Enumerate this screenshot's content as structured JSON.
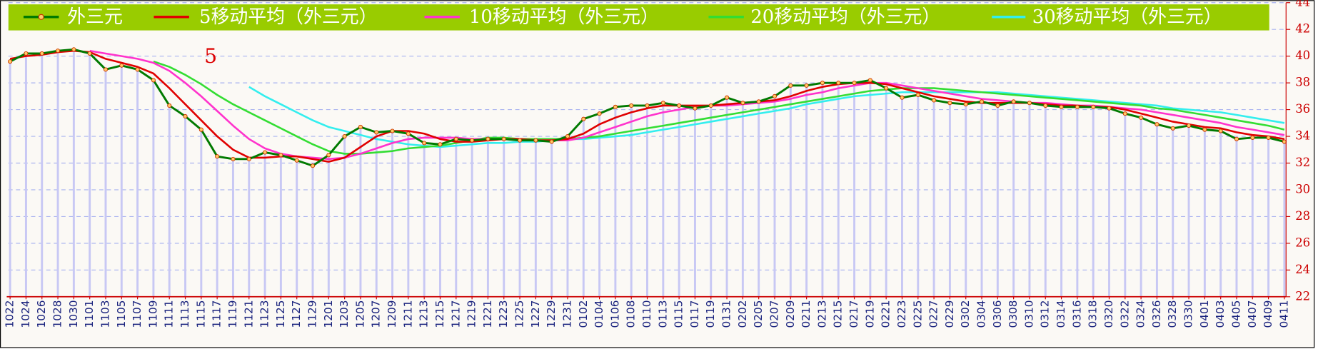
{
  "chart_data": {
    "type": "line",
    "annotations": [
      "5"
    ],
    "categories": [
      "1022",
      "1024",
      "1026",
      "1028",
      "1030",
      "1101",
      "1103",
      "1105",
      "1107",
      "1109",
      "1111",
      "1113",
      "1115",
      "1117",
      "1119",
      "1121",
      "1123",
      "1125",
      "1127",
      "1129",
      "1201",
      "1203",
      "1205",
      "1207",
      "1209",
      "1211",
      "1213",
      "1215",
      "1217",
      "1219",
      "1221",
      "1223",
      "1225",
      "1227",
      "1229",
      "1231",
      "0102",
      "0104",
      "0106",
      "0108",
      "0110",
      "0113",
      "0115",
      "0117",
      "0119",
      "0131",
      "0202",
      "0205",
      "0207",
      "0209",
      "0211",
      "0213",
      "0215",
      "0217",
      "0219",
      "0221",
      "0223",
      "0225",
      "0227",
      "0229",
      "0302",
      "0304",
      "0306",
      "0308",
      "0310",
      "0312",
      "0314",
      "0316",
      "0318",
      "0320",
      "0322",
      "0324",
      "0326",
      "0328",
      "0330",
      "0401",
      "0403",
      "0405",
      "0407",
      "0409",
      "0411"
    ],
    "series": [
      {
        "name": "外三元",
        "color": "#007a00",
        "values": [
          39.6,
          40.2,
          40.2,
          40.4,
          40.5,
          40.2,
          39.0,
          39.3,
          39.0,
          38.2,
          36.3,
          35.5,
          34.5,
          32.5,
          32.3,
          32.3,
          32.8,
          32.6,
          32.2,
          31.8,
          32.6,
          34.0,
          34.7,
          34.3,
          34.4,
          34.2,
          33.5,
          33.4,
          33.8,
          33.7,
          33.8,
          33.8,
          33.7,
          33.7,
          33.6,
          34.0,
          35.3,
          35.7,
          36.2,
          36.3,
          36.3,
          36.5,
          36.3,
          36.1,
          36.3,
          36.9,
          36.5,
          36.6,
          37.0,
          37.8,
          37.8,
          38.0,
          38.0,
          38.0,
          38.2,
          37.6,
          36.9,
          37.1,
          36.7,
          36.5,
          36.4,
          36.6,
          36.3,
          36.6,
          36.5,
          36.3,
          36.2,
          36.2,
          36.2,
          36.1,
          35.7,
          35.4,
          34.9,
          34.6,
          34.8,
          34.5,
          34.4,
          33.8,
          33.9,
          33.9,
          33.6
        ]
      },
      {
        "name": "5移动平均（外三元）",
        "color": "#e00000",
        "values": [
          39.8,
          40.0,
          40.1,
          40.3,
          40.4,
          40.3,
          39.8,
          39.5,
          39.2,
          38.7,
          37.6,
          36.4,
          35.2,
          34.0,
          33.0,
          32.4,
          32.4,
          32.5,
          32.5,
          32.3,
          32.1,
          32.4,
          33.2,
          34.0,
          34.4,
          34.4,
          34.2,
          33.8,
          33.6,
          33.6,
          33.7,
          33.8,
          33.8,
          33.7,
          33.7,
          33.8,
          34.2,
          34.9,
          35.4,
          35.8,
          36.1,
          36.3,
          36.3,
          36.3,
          36.3,
          36.4,
          36.5,
          36.6,
          36.7,
          37.0,
          37.4,
          37.7,
          37.9,
          38.0,
          38.0,
          37.9,
          37.6,
          37.3,
          37.0,
          36.8,
          36.6,
          36.5,
          36.5,
          36.5,
          36.5,
          36.4,
          36.3,
          36.3,
          36.2,
          36.2,
          36.0,
          35.7,
          35.4,
          35.1,
          34.9,
          34.7,
          34.6,
          34.3,
          34.1,
          34.0,
          33.8
        ]
      },
      {
        "name": "10移动平均（外三元）",
        "color": "#ff33cc",
        "values": [
          null,
          null,
          null,
          null,
          null,
          40.4,
          40.2,
          40.0,
          39.8,
          39.5,
          38.9,
          38.0,
          37.0,
          35.9,
          34.8,
          33.8,
          33.1,
          32.7,
          32.5,
          32.4,
          32.3,
          32.4,
          32.7,
          33.1,
          33.5,
          33.8,
          33.9,
          33.9,
          33.9,
          33.8,
          33.8,
          33.8,
          33.7,
          33.7,
          33.7,
          33.7,
          33.9,
          34.3,
          34.7,
          35.1,
          35.5,
          35.8,
          36.0,
          36.2,
          36.3,
          36.3,
          36.4,
          36.5,
          36.6,
          36.8,
          37.1,
          37.3,
          37.6,
          37.8,
          38.0,
          38.0,
          37.8,
          37.6,
          37.4,
          37.2,
          37.0,
          36.8,
          36.7,
          36.6,
          36.5,
          36.5,
          36.4,
          36.3,
          36.3,
          36.2,
          36.1,
          36.0,
          35.8,
          35.6,
          35.4,
          35.2,
          35.0,
          34.7,
          34.5,
          34.3,
          34.1
        ]
      },
      {
        "name": "20移动平均（外三元）",
        "color": "#33dd33",
        "values": [
          null,
          null,
          null,
          null,
          null,
          null,
          null,
          null,
          null,
          39.6,
          39.2,
          38.6,
          37.9,
          37.1,
          36.4,
          35.8,
          35.2,
          34.6,
          34.0,
          33.4,
          32.9,
          32.7,
          32.7,
          32.8,
          32.9,
          33.1,
          33.2,
          33.3,
          33.5,
          33.7,
          33.9,
          33.9,
          33.8,
          33.8,
          33.8,
          33.8,
          33.9,
          34.0,
          34.2,
          34.4,
          34.6,
          34.8,
          35.0,
          35.2,
          35.4,
          35.6,
          35.8,
          36.0,
          36.2,
          36.4,
          36.6,
          36.8,
          37.0,
          37.2,
          37.4,
          37.5,
          37.6,
          37.6,
          37.6,
          37.5,
          37.4,
          37.3,
          37.2,
          37.1,
          37.0,
          36.9,
          36.8,
          36.7,
          36.6,
          36.5,
          36.4,
          36.3,
          36.1,
          36.0,
          35.8,
          35.6,
          35.4,
          35.2,
          35.0,
          34.8,
          34.5
        ]
      },
      {
        "name": "30移动平均（外三元）",
        "color": "#33eeee",
        "values": [
          null,
          null,
          null,
          null,
          null,
          null,
          null,
          null,
          null,
          null,
          null,
          null,
          null,
          null,
          null,
          37.7,
          37.0,
          36.4,
          35.8,
          35.2,
          34.7,
          34.4,
          34.1,
          33.8,
          33.6,
          33.4,
          33.3,
          33.2,
          33.3,
          33.4,
          33.5,
          33.5,
          33.6,
          33.6,
          33.7,
          33.8,
          33.8,
          33.9,
          34.0,
          34.1,
          34.3,
          34.5,
          34.7,
          34.9,
          35.1,
          35.3,
          35.5,
          35.7,
          35.9,
          36.1,
          36.4,
          36.6,
          36.8,
          37.0,
          37.1,
          37.2,
          37.3,
          37.3,
          37.3,
          37.3,
          37.3,
          37.3,
          37.3,
          37.2,
          37.1,
          37.0,
          36.9,
          36.8,
          36.7,
          36.6,
          36.5,
          36.4,
          36.3,
          36.1,
          36.0,
          35.9,
          35.8,
          35.6,
          35.4,
          35.2,
          35.0
        ]
      }
    ],
    "ylim": [
      22,
      44
    ],
    "yticks": [
      22,
      24,
      26,
      28,
      30,
      32,
      34,
      36,
      38,
      40,
      42,
      44
    ],
    "grid": true,
    "legend": "top",
    "bar_color": "#c8c8f4"
  }
}
